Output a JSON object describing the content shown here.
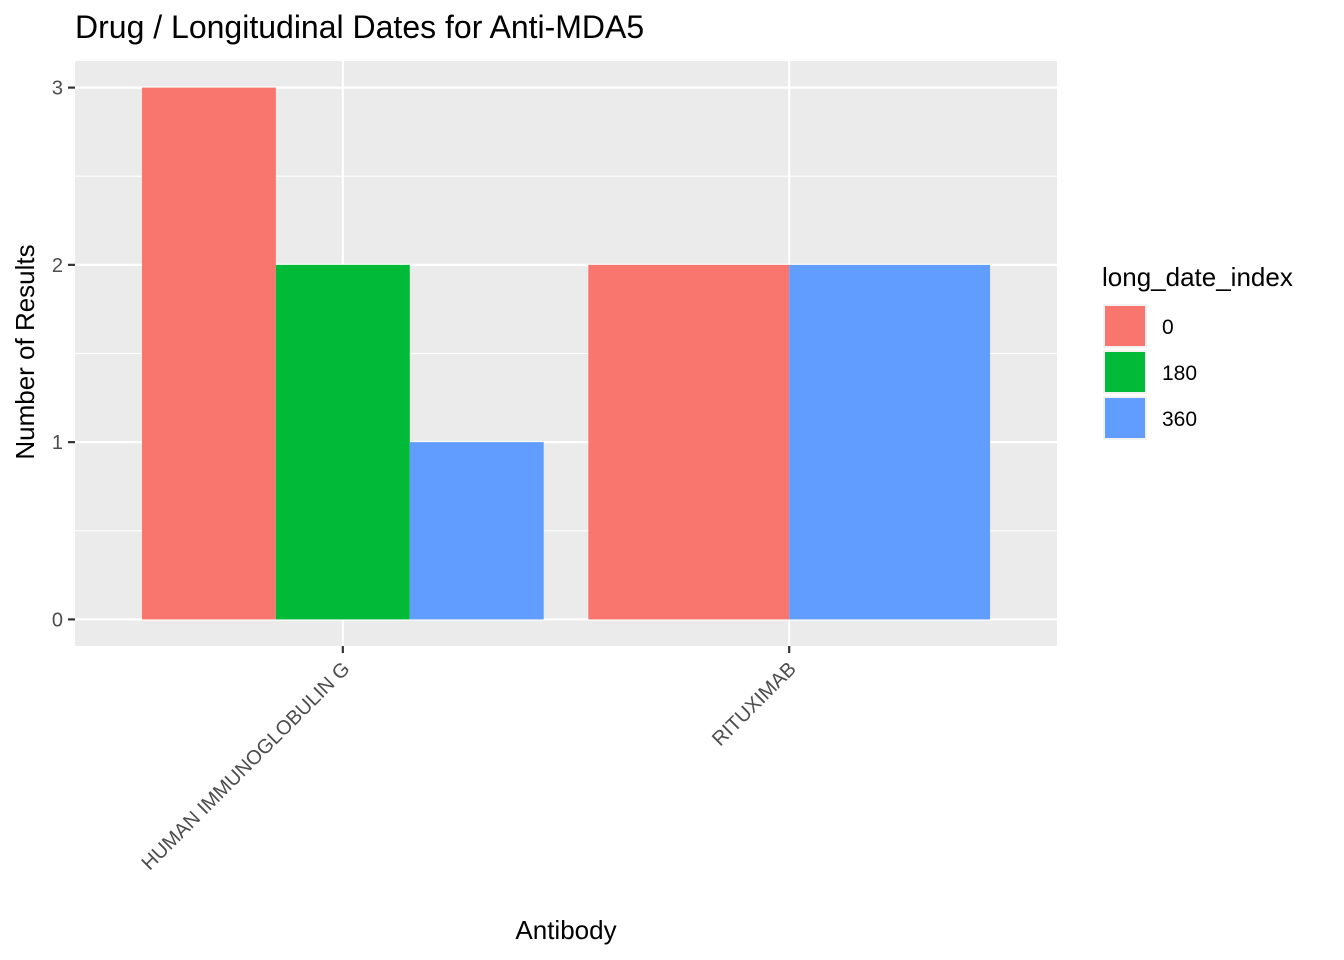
{
  "chart_data": {
    "type": "bar",
    "title": "Drug / Longitudinal Dates for Anti-MDA5",
    "xlabel": "Antibody",
    "ylabel": "Number of Results",
    "categories": [
      "HUMAN IMMUNOGLOBULIN G",
      "RITUXIMAB"
    ],
    "series": [
      {
        "name": "0",
        "color": "#F8766D",
        "values": [
          3,
          2
        ]
      },
      {
        "name": "180",
        "color": "#00BA38",
        "values": [
          2,
          null
        ]
      },
      {
        "name": "360",
        "color": "#619CFF",
        "values": [
          1,
          2
        ]
      }
    ],
    "ylim": [
      -0.15,
      3.15
    ],
    "yticks": [
      0,
      1,
      2,
      3
    ],
    "ytick_labels": [
      "0",
      "1",
      "2",
      "3"
    ],
    "legend_title": "long_date_index",
    "legend_position": "right",
    "grid": true,
    "panel_color": "#EBEBEB",
    "grid_color": "#FFFFFF"
  }
}
